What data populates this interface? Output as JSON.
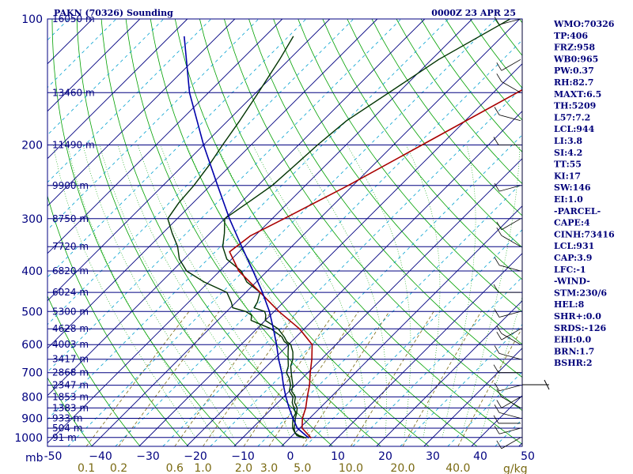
{
  "chart_data": {
    "type": "line",
    "chart_kind": "skew-T log-P sounding",
    "title_left": "PAKN (70326) Sounding",
    "title_right": "0000Z 23 APR 25",
    "y_unit_label": "mb",
    "pressure_ticks": [
      100,
      200,
      300,
      400,
      500,
      600,
      700,
      800,
      900,
      1000
    ],
    "pressure_range": [
      100,
      1050
    ],
    "temperature_ticks": [
      -50,
      -40,
      -30,
      -20,
      -10,
      0,
      10,
      20,
      30,
      40,
      50
    ],
    "temperature_tick_labels": [
      "-50",
      "−40",
      "−30",
      "−20",
      "−10",
      "0",
      "10",
      "20",
      "30",
      "40",
      "50"
    ],
    "temperature_unit": "C",
    "mixing_ratio_labels": [
      {
        "value": 0.1,
        "label": "0.1"
      },
      {
        "value": 0.2,
        "label": "0.2"
      },
      {
        "value": 0.6,
        "label": "0.6"
      },
      {
        "value": 1.0,
        "label": "1.0"
      },
      {
        "value": 2.0,
        "label": "2.0"
      },
      {
        "value": 3.0,
        "label": "3.0"
      },
      {
        "value": 5.0,
        "label": "5.0"
      },
      {
        "value": 10.0,
        "label": "10.0"
      },
      {
        "value": 20.0,
        "label": "20.0"
      },
      {
        "value": 40.0,
        "label": "40.0"
      }
    ],
    "mixing_ratio_unit": "g/kg",
    "height_labels": [
      {
        "p": 100,
        "label": "16050 m"
      },
      {
        "p": 150,
        "label": "13460 m"
      },
      {
        "p": 200,
        "label": "11490 m"
      },
      {
        "p": 250,
        "label": "9900 m"
      },
      {
        "p": 300,
        "label": "8750 m"
      },
      {
        "p": 350,
        "label": "7720 m"
      },
      {
        "p": 400,
        "label": "6820 m"
      },
      {
        "p": 450,
        "label": "6024 m"
      },
      {
        "p": 500,
        "label": "5300 m"
      },
      {
        "p": 550,
        "label": "4628 m"
      },
      {
        "p": 600,
        "label": "4003 m"
      },
      {
        "p": 650,
        "label": "3417 m"
      },
      {
        "p": 700,
        "label": "2868 m"
      },
      {
        "p": 750,
        "label": "2347 m"
      },
      {
        "p": 800,
        "label": "1853 m"
      },
      {
        "p": 850,
        "label": "1383 m"
      },
      {
        "p": 900,
        "label": "933 m"
      },
      {
        "p": 950,
        "label": "504 m"
      },
      {
        "p": 1000,
        "label": "91 m"
      }
    ],
    "series": [
      {
        "role": "temperature",
        "color": "#003300",
        "points": [
          {
            "p": 1003,
            "t": 3.5
          },
          {
            "p": 990,
            "t": 1.5
          },
          {
            "p": 975,
            "t": 0.0
          },
          {
            "p": 950,
            "t": -1.2
          },
          {
            "p": 925,
            "t": -2.0
          },
          {
            "p": 900,
            "t": -3.0
          },
          {
            "p": 875,
            "t": -3.8
          },
          {
            "p": 850,
            "t": -4.8
          },
          {
            "p": 825,
            "t": -6.5
          },
          {
            "p": 800,
            "t": -7.5
          },
          {
            "p": 775,
            "t": -9.5
          },
          {
            "p": 750,
            "t": -10.5
          },
          {
            "p": 725,
            "t": -12.0
          },
          {
            "p": 700,
            "t": -13.5
          },
          {
            "p": 675,
            "t": -15.0
          },
          {
            "p": 650,
            "t": -16.0
          },
          {
            "p": 625,
            "t": -17.5
          },
          {
            "p": 600,
            "t": -19.5
          },
          {
            "p": 590,
            "t": -21.0
          },
          {
            "p": 575,
            "t": -22.5
          },
          {
            "p": 550,
            "t": -25.5
          },
          {
            "p": 525,
            "t": -30.0
          },
          {
            "p": 510,
            "t": -31.0
          },
          {
            "p": 500,
            "t": -32.0
          },
          {
            "p": 490,
            "t": -35.0
          },
          {
            "p": 475,
            "t": -35.5
          },
          {
            "p": 450,
            "t": -37.0
          },
          {
            "p": 425,
            "t": -42.0
          },
          {
            "p": 400,
            "t": -45.5
          },
          {
            "p": 375,
            "t": -51.0
          },
          {
            "p": 350,
            "t": -54.5
          },
          {
            "p": 325,
            "t": -57.0
          },
          {
            "p": 300,
            "t": -60.0
          },
          {
            "p": 275,
            "t": -58.5
          },
          {
            "p": 250,
            "t": -57.0
          },
          {
            "p": 225,
            "t": -56.5
          },
          {
            "p": 200,
            "t": -56.0
          },
          {
            "p": 175,
            "t": -55.0
          },
          {
            "p": 150,
            "t": -52.0
          },
          {
            "p": 125,
            "t": -48.5
          },
          {
            "p": 100,
            "t": -42.0
          }
        ]
      },
      {
        "role": "dewpoint",
        "color": "#003300",
        "points": [
          {
            "p": 1003,
            "t": 3.0
          },
          {
            "p": 990,
            "t": 1.0
          },
          {
            "p": 975,
            "t": 0.0
          },
          {
            "p": 950,
            "t": -1.5
          },
          {
            "p": 925,
            "t": -2.5
          },
          {
            "p": 900,
            "t": -3.5
          },
          {
            "p": 875,
            "t": -4.0
          },
          {
            "p": 850,
            "t": -5.5
          },
          {
            "p": 825,
            "t": -7.0
          },
          {
            "p": 800,
            "t": -8.0
          },
          {
            "p": 775,
            "t": -10.0
          },
          {
            "p": 750,
            "t": -11.0
          },
          {
            "p": 725,
            "t": -12.5
          },
          {
            "p": 700,
            "t": -14.5
          },
          {
            "p": 675,
            "t": -15.5
          },
          {
            "p": 650,
            "t": -17.0
          },
          {
            "p": 625,
            "t": -18.5
          },
          {
            "p": 600,
            "t": -20.0
          },
          {
            "p": 590,
            "t": -21.5
          },
          {
            "p": 575,
            "t": -23.0
          },
          {
            "p": 550,
            "t": -27.0
          },
          {
            "p": 525,
            "t": -33.0
          },
          {
            "p": 510,
            "t": -34.0
          },
          {
            "p": 500,
            "t": -36.0
          },
          {
            "p": 490,
            "t": -39.5
          },
          {
            "p": 475,
            "t": -41.0
          },
          {
            "p": 450,
            "t": -44.0
          },
          {
            "p": 425,
            "t": -51.0
          },
          {
            "p": 400,
            "t": -57.0
          },
          {
            "p": 375,
            "t": -61.0
          },
          {
            "p": 350,
            "t": -64.0
          },
          {
            "p": 325,
            "t": -68.0
          },
          {
            "p": 300,
            "t": -72.0
          },
          {
            "p": 275,
            "t": -73.0
          },
          {
            "p": 250,
            "t": -73.5
          },
          {
            "p": 225,
            "t": -74.5
          },
          {
            "p": 200,
            "t": -76.0
          },
          {
            "p": 175,
            "t": -77.5
          },
          {
            "p": 150,
            "t": -79.5
          },
          {
            "p": 125,
            "t": -82.0
          },
          {
            "p": 110,
            "t": -84.0
          }
        ]
      },
      {
        "role": "virtual temperature",
        "color": "#aa0000",
        "points": [
          {
            "p": 1003,
            "t": 4.5
          },
          {
            "p": 950,
            "t": 0.5
          },
          {
            "p": 900,
            "t": -1.5
          },
          {
            "p": 850,
            "t": -3.0
          },
          {
            "p": 800,
            "t": -5.0
          },
          {
            "p": 750,
            "t": -7.0
          },
          {
            "p": 700,
            "t": -9.5
          },
          {
            "p": 650,
            "t": -12.0
          },
          {
            "p": 600,
            "t": -15.0
          },
          {
            "p": 550,
            "t": -21.0
          },
          {
            "p": 500,
            "t": -29.0
          },
          {
            "p": 450,
            "t": -37.0
          },
          {
            "p": 400,
            "t": -46.0
          },
          {
            "p": 360,
            "t": -52.0
          },
          {
            "p": 330,
            "t": -51.0
          },
          {
            "p": 300,
            "t": -47.5
          },
          {
            "p": 250,
            "t": -41.0
          },
          {
            "p": 200,
            "t": -34.0
          },
          {
            "p": 150,
            "t": -25.0
          },
          {
            "p": 120,
            "t": -18.0
          },
          {
            "p": 100,
            "t": -12.5
          }
        ]
      },
      {
        "role": "parcel",
        "color": "#0000aa",
        "points": [
          {
            "p": 1003,
            "t": 4.0
          },
          {
            "p": 950,
            "t": -0.5
          },
          {
            "p": 900,
            "t": -3.5
          },
          {
            "p": 850,
            "t": -6.5
          },
          {
            "p": 800,
            "t": -9.5
          },
          {
            "p": 750,
            "t": -12.5
          },
          {
            "p": 700,
            "t": -15.5
          },
          {
            "p": 650,
            "t": -19.0
          },
          {
            "p": 600,
            "t": -22.5
          },
          {
            "p": 550,
            "t": -26.5
          },
          {
            "p": 500,
            "t": -31.0
          },
          {
            "p": 450,
            "t": -36.5
          },
          {
            "p": 400,
            "t": -43.0
          },
          {
            "p": 350,
            "t": -50.5
          },
          {
            "p": 300,
            "t": -59.0
          },
          {
            "p": 250,
            "t": -68.5
          },
          {
            "p": 200,
            "t": -80.0
          },
          {
            "p": 150,
            "t": -94.0
          },
          {
            "p": 110,
            "t": -107.0
          }
        ]
      }
    ],
    "grid": true
  },
  "indices": [
    "WMO:70326",
    "TP:406",
    "FRZ:958",
    "WB0:965",
    "PW:0.37",
    "RH:82.7",
    "MAXT:6.5",
    "TH:5209",
    "L57:7.2",
    "LCL:944",
    "LI:3.8",
    "SI:4.2",
    "TT:55",
    "KI:17",
    "SW:146",
    "EI:1.0",
    "-PARCEL-",
    "CAPE:4",
    "CINH:73416",
    "LCL:931",
    "CAP:3.9",
    "LFC:-1",
    "-WIND-",
    "STM:230/6",
    "HEL:8",
    "SHR+:0.0",
    "SRDS:-126",
    "EHI:0.0",
    "BRN:1.7",
    "BSHR:2"
  ],
  "colors": {
    "isobar": "#000080",
    "isotherm": "#000080",
    "dry_adiabat": "#00a000",
    "moist_adiabat": "#00a000",
    "mixing_ratio": "#7a6a12",
    "isotherm_dashed": "#00a0d0"
  }
}
